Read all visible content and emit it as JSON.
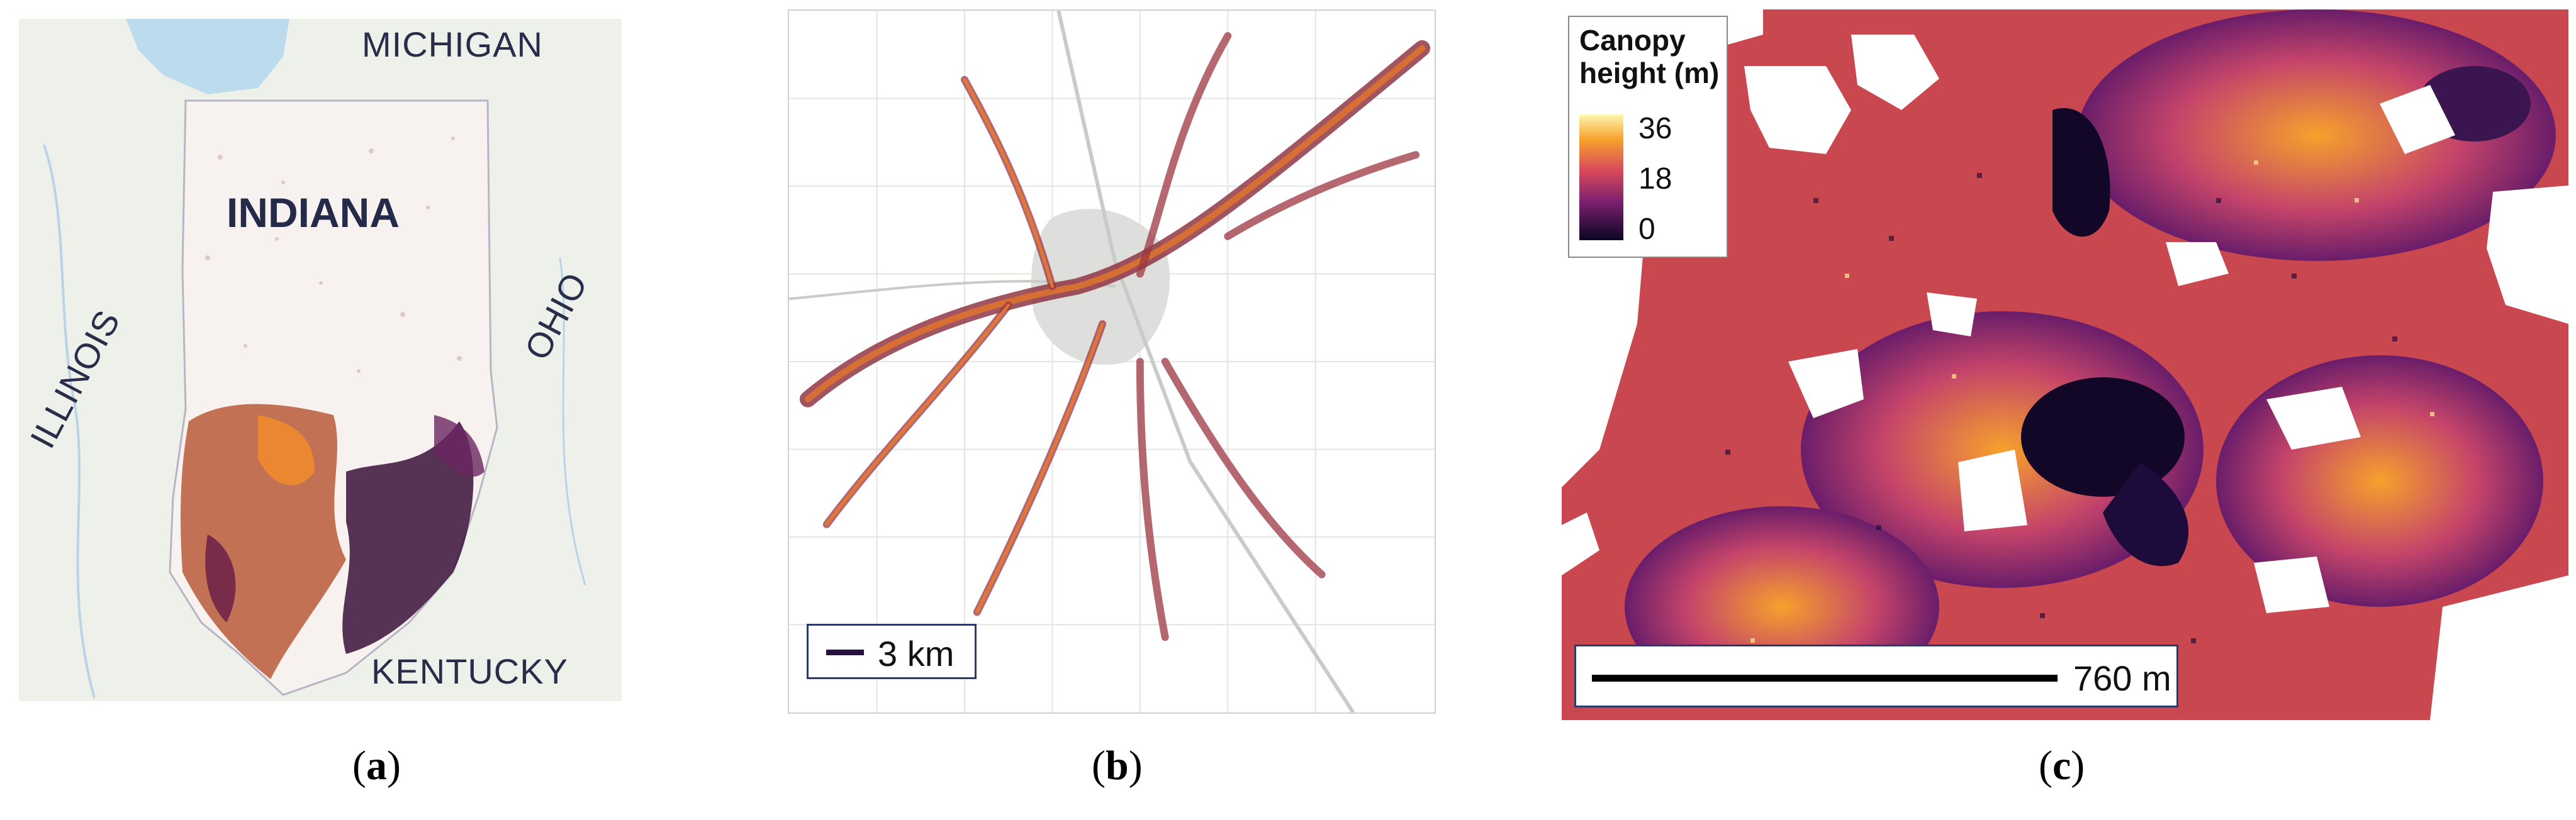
{
  "panel_a": {
    "labels": {
      "michigan": "MICHIGAN",
      "indiana": "INDIANA",
      "illinois": "ILLINOIS",
      "ohio": "OHIO",
      "kentucky": "KENTUCKY"
    },
    "caption": "a"
  },
  "panel_b": {
    "scale_label": "3 km",
    "caption": "b"
  },
  "panel_c": {
    "legend": {
      "title_line1": "Canopy",
      "title_line2": "height (m)",
      "ticks": [
        "36",
        "18",
        "0"
      ]
    },
    "scale_label": "760 m",
    "caption": "c"
  },
  "colors": {
    "low": "#0b0524",
    "mid": "#7a1f6e",
    "high": "#f48a22",
    "top": "#fbe57b"
  }
}
